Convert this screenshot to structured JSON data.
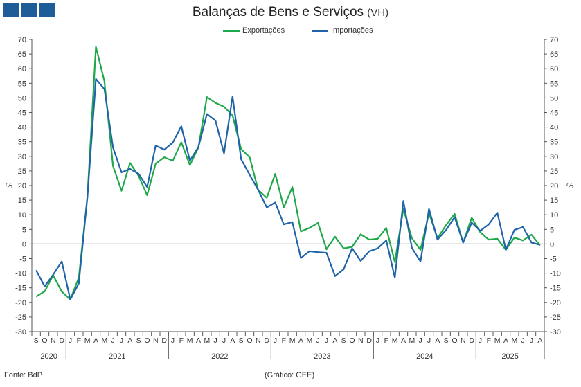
{
  "chart_data": {
    "type": "line",
    "title": "Balanças de Bens e Serviços",
    "title_suffix": "(VH)",
    "ylabel_left": "%",
    "ylabel_right": "%",
    "ylim": [
      -30,
      70
    ],
    "yticks": [
      -30,
      -25,
      -20,
      -15,
      -10,
      -5,
      0,
      5,
      10,
      15,
      20,
      25,
      30,
      35,
      40,
      45,
      50,
      55,
      60,
      65,
      70
    ],
    "month_labels": [
      "S",
      "O",
      "N",
      "D",
      "J",
      "F",
      "M",
      "A",
      "M",
      "J",
      "J",
      "A",
      "S",
      "O",
      "N",
      "D",
      "J",
      "F",
      "M",
      "A",
      "M",
      "J",
      "J",
      "A",
      "S",
      "O",
      "N",
      "D",
      "J",
      "F",
      "M",
      "A",
      "M",
      "J",
      "J",
      "A",
      "S",
      "O",
      "N",
      "D",
      "J",
      "F",
      "M",
      "A",
      "M",
      "J",
      "J",
      "A",
      "S",
      "O",
      "N",
      "D",
      "J",
      "F",
      "M",
      "A",
      "M",
      "J",
      "J",
      "A"
    ],
    "years": [
      {
        "label": "2020",
        "start": 0,
        "end": 4
      },
      {
        "label": "2021",
        "start": 4,
        "end": 16
      },
      {
        "label": "2022",
        "start": 16,
        "end": 28
      },
      {
        "label": "2023",
        "start": 28,
        "end": 40
      },
      {
        "label": "2024",
        "start": 40,
        "end": 52
      },
      {
        "label": "2025",
        "start": 52,
        "end": 60
      }
    ],
    "series": [
      {
        "name": "Exportações",
        "color": "#1fa84a",
        "values": [
          -18,
          -16.2,
          -10.7,
          -16.3,
          -19,
          -11.5,
          16,
          67.5,
          55.7,
          26.7,
          18.2,
          27.7,
          23.3,
          16.7,
          27.5,
          29.7,
          28.5,
          34.8,
          27,
          33,
          50.3,
          48.3,
          47,
          44,
          32.5,
          29.7,
          18.5,
          15.8,
          24,
          12.5,
          19.5,
          4.3,
          5.5,
          7.2,
          -1.8,
          2.5,
          -1.5,
          -1,
          3.3,
          1.5,
          1.8,
          5.5,
          -6.2,
          12,
          2,
          -2,
          10.5,
          2,
          6.5,
          10.3,
          0.5,
          9,
          4,
          1.5,
          1.8,
          -2,
          2.2,
          1.2,
          3.2,
          -0.5
        ]
      },
      {
        "name": "Importações",
        "color": "#1f63a8",
        "values": [
          -9,
          -14.5,
          -10.5,
          -6,
          -19,
          -13.5,
          16,
          56.5,
          53,
          33,
          24.5,
          25.7,
          24,
          19.5,
          33.7,
          32.3,
          34.7,
          40.3,
          28.5,
          33.2,
          44.5,
          42.2,
          31,
          50.5,
          29,
          23.7,
          18.5,
          12.5,
          14.2,
          6.7,
          7.5,
          -4.8,
          -2.5,
          -2.8,
          -3,
          -11,
          -8.7,
          -1.5,
          -5.8,
          -2.5,
          -1.5,
          1.2,
          -11.5,
          14.7,
          -1.3,
          -6,
          12,
          1.5,
          4.8,
          9.2,
          0.5,
          7.3,
          4.5,
          6.7,
          10.7,
          -2,
          4.8,
          5.8,
          0.5,
          -0.3
        ]
      }
    ]
  },
  "footer": {
    "source": "Fonte: BdP",
    "credit": "(Gráfico: GEE)"
  }
}
